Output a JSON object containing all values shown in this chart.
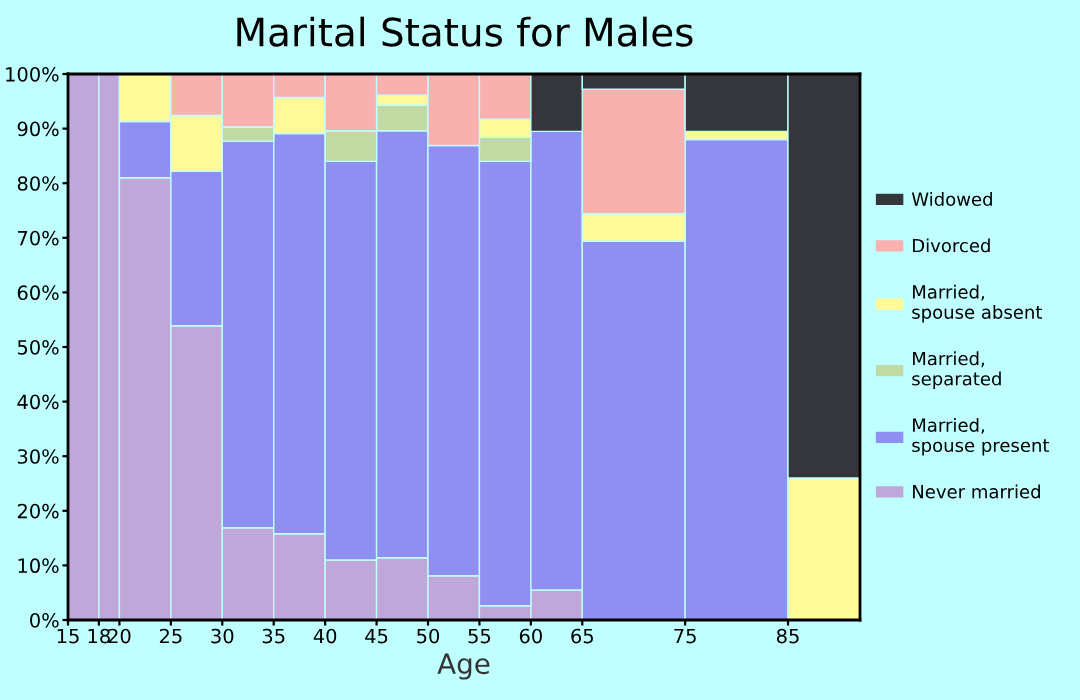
{
  "chart_data": {
    "type": "bar",
    "stacked": true,
    "title": "Marital Status for Males",
    "xlabel": "Age",
    "x": [
      16.5,
      19,
      22.5,
      27.5,
      32.5,
      37.5,
      42.5,
      47.5,
      52.5,
      57.5,
      62.5,
      70,
      80,
      88.5
    ],
    "xlim": [
      15,
      92
    ],
    "xticks": [
      15,
      18,
      20,
      25,
      30,
      35,
      40,
      45,
      50,
      55,
      60,
      65,
      75,
      85
    ],
    "ylim": [
      0,
      100
    ],
    "yticks": [
      {
        "value": 0,
        "label": "0%"
      },
      {
        "value": 10,
        "label": "10%"
      },
      {
        "value": 20,
        "label": "20%"
      },
      {
        "value": 30,
        "label": "30%"
      },
      {
        "value": 40,
        "label": "40%"
      },
      {
        "value": 50,
        "label": "50%"
      },
      {
        "value": 60,
        "label": "60%"
      },
      {
        "value": 70,
        "label": "70%"
      },
      {
        "value": 80,
        "label": "80%"
      },
      {
        "value": 90,
        "label": "90%"
      },
      {
        "value": 100,
        "label": "100%"
      }
    ],
    "grid": false,
    "legend": "right",
    "series": [
      {
        "name": "Never married",
        "color": "#bfa8d9",
        "values": [
          100,
          100,
          81.0,
          53.9,
          16.9,
          15.8,
          11.0,
          11.4,
          8.1,
          2.6,
          5.5,
          0,
          0,
          0
        ]
      },
      {
        "name": "Married,\nspouse present",
        "color": "#8f8ff2",
        "values": [
          0,
          0,
          10.3,
          28.3,
          70.8,
          73.3,
          73.0,
          78.2,
          78.8,
          81.4,
          84.0,
          69.4,
          88.0,
          0
        ]
      },
      {
        "name": "Married,\nseparated",
        "color": "#c2d9a4",
        "values": [
          0,
          0,
          0,
          0,
          2.6,
          0,
          5.6,
          4.7,
          0,
          4.4,
          0,
          0,
          0,
          0
        ]
      },
      {
        "name": "Married,\nspouse absent",
        "color": "#fffa98",
        "values": [
          0,
          0,
          8.7,
          10.2,
          0,
          6.6,
          0,
          1.8,
          0,
          3.3,
          0,
          5.0,
          1.5,
          26.0
        ]
      },
      {
        "name": "Divorced",
        "color": "#f9b1b0",
        "values": [
          0,
          0,
          0,
          7.6,
          9.7,
          4.3,
          10.4,
          3.9,
          13.1,
          8.3,
          0,
          22.8,
          0,
          0
        ]
      },
      {
        "name": "Widowed",
        "color": "#35363b",
        "values": [
          0,
          0,
          0,
          0,
          0,
          0,
          0,
          0,
          0,
          0,
          10.5,
          2.8,
          10.5,
          74.0
        ]
      }
    ]
  }
}
